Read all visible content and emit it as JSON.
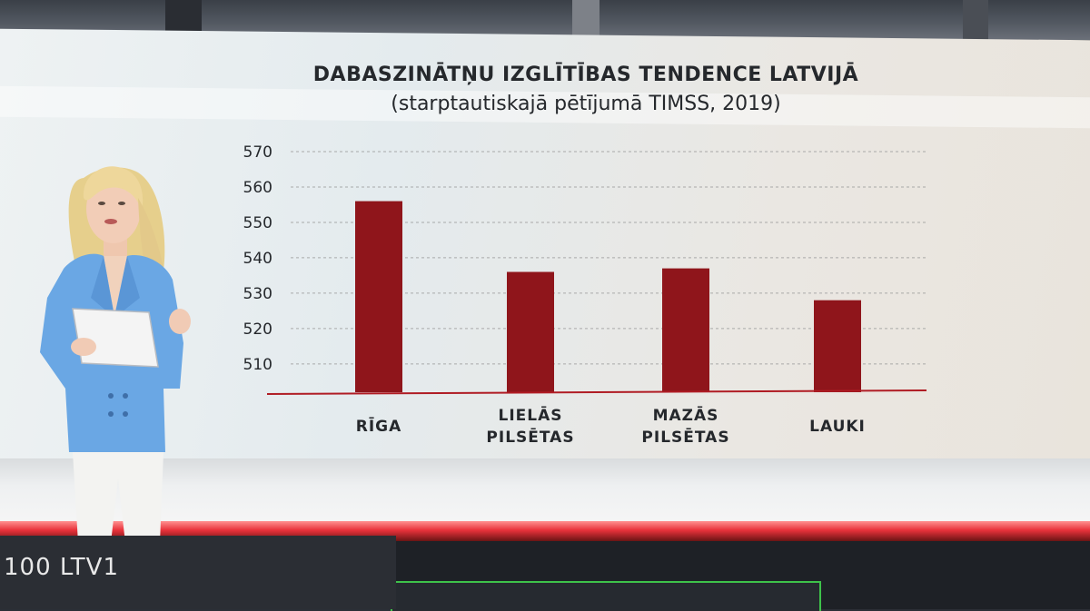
{
  "ticker": {
    "text": "100 LTV1"
  },
  "colors": {
    "bar": "#8f151b",
    "baseline": "#b01c24",
    "grid": "#9a9a9a",
    "text": "#25282c"
  },
  "chart_data": {
    "type": "bar",
    "title": "DABASZINĀTŅU IZGLĪTĪBAS TENDENCE LATVIJĀ",
    "subtitle": "(starptautiskajā pētījumā TIMSS, 2019)",
    "categories": [
      [
        "RĪGA"
      ],
      [
        "LIELĀS",
        "PILSĒTAS"
      ],
      [
        "MAZĀS",
        "PILSĒTAS"
      ],
      [
        "LAUKI"
      ]
    ],
    "values": [
      556,
      536,
      537,
      528
    ],
    "yticks": [
      510,
      520,
      530,
      540,
      550,
      560,
      570
    ],
    "ylim": [
      502,
      570
    ],
    "grid": true,
    "xlabel": "",
    "ylabel": ""
  }
}
